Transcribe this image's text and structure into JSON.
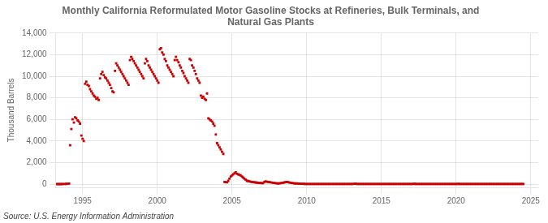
{
  "chart_data": {
    "type": "scatter",
    "title": "Monthly California Reformulated Motor Gasoline Stocks at Refineries, Bulk Terminals, and\nNatural Gas Plants",
    "ylabel": "Thousand Barrels",
    "source": "Source: U.S. Energy Information Administration",
    "color": "#cc0000",
    "marker": "square",
    "grid": true,
    "xlim": [
      1993.2,
      2025.5
    ],
    "ylim": [
      -300,
      14000
    ],
    "xticks": [
      1995,
      2000,
      2005,
      2010,
      2015,
      2020,
      2025
    ],
    "yticks": [
      0,
      {
        "value": 2000,
        "label": "2,000"
      },
      {
        "value": 4000,
        "label": "4,000"
      },
      {
        "value": 6000,
        "label": "6,000"
      },
      {
        "value": 8000,
        "label": "8,000"
      },
      {
        "value": 10000,
        "label": "10,000"
      },
      {
        "value": 12000,
        "label": "12,000"
      },
      {
        "value": 14000,
        "label": "14,000"
      }
    ],
    "x": [
      1993.3,
      1993.4,
      1993.5,
      1993.6,
      1993.7,
      1993.8,
      1993.9,
      1994.0,
      1994.1,
      1994.17,
      1994.25,
      1994.33,
      1994.42,
      1994.5,
      1994.58,
      1994.67,
      1994.75,
      1994.83,
      1994.92,
      1995.0,
      1995.08,
      1995.17,
      1995.25,
      1995.33,
      1995.42,
      1995.5,
      1995.58,
      1995.67,
      1995.75,
      1995.83,
      1995.92,
      1996.0,
      1996.08,
      1996.17,
      1996.25,
      1996.33,
      1996.42,
      1996.5,
      1996.58,
      1996.67,
      1996.75,
      1996.83,
      1996.92,
      1997.0,
      1997.08,
      1997.17,
      1997.25,
      1997.33,
      1997.42,
      1997.5,
      1997.58,
      1997.67,
      1997.75,
      1997.83,
      1997.92,
      1998.0,
      1998.08,
      1998.17,
      1998.25,
      1998.33,
      1998.42,
      1998.5,
      1998.58,
      1998.67,
      1998.75,
      1998.83,
      1998.92,
      1999.0,
      1999.08,
      1999.17,
      1999.25,
      1999.33,
      1999.42,
      1999.5,
      1999.58,
      1999.67,
      1999.75,
      1999.83,
      1999.92,
      2000.0,
      2000.08,
      2000.17,
      2000.25,
      2000.33,
      2000.42,
      2000.5,
      2000.58,
      2000.67,
      2000.75,
      2000.83,
      2000.92,
      2001.0,
      2001.08,
      2001.17,
      2001.25,
      2001.33,
      2001.42,
      2001.5,
      2001.58,
      2001.67,
      2001.75,
      2001.83,
      2001.92,
      2002.0,
      2002.08,
      2002.17,
      2002.25,
      2002.33,
      2002.42,
      2002.5,
      2002.58,
      2002.67,
      2002.75,
      2002.83,
      2002.92,
      2003.0,
      2003.08,
      2003.17,
      2003.25,
      2003.33,
      2003.42,
      2003.5,
      2003.58,
      2003.67,
      2003.75,
      2003.83,
      2003.92,
      2004.0,
      2004.08,
      2004.17,
      2004.25,
      2004.33,
      2004.42,
      2004.5,
      2004.58,
      2004.67,
      2004.75,
      2004.83,
      2004.92,
      2005.0,
      2005.08,
      2005.17,
      2005.25,
      2005.33,
      2005.42,
      2005.5,
      2005.58,
      2005.67,
      2005.75,
      2005.83,
      2005.92,
      2006.0,
      2006.08,
      2006.17,
      2006.25,
      2006.33,
      2006.42,
      2006.5,
      2006.58,
      2006.67,
      2006.75,
      2006.83,
      2006.92,
      2007.0,
      2007.08,
      2007.17,
      2007.25,
      2007.33,
      2007.42,
      2007.5,
      2007.58,
      2007.67,
      2007.75,
      2007.83,
      2007.92,
      2008.0,
      2008.08,
      2008.17,
      2008.25,
      2008.33,
      2008.42,
      2008.5,
      2008.58,
      2008.67,
      2008.75,
      2008.83,
      2008.92,
      2009.0,
      2009.08,
      2009.17,
      2009.25,
      2009.33,
      2009.42,
      2009.5,
      2009.58,
      2009.67,
      2009.75,
      2009.83,
      2009.92,
      2010.0,
      2010.08,
      2010.17,
      2010.25,
      2010.33,
      2010.42,
      2010.5,
      2010.58,
      2010.67,
      2010.75,
      2010.83,
      2010.92,
      2011.0,
      2011.08,
      2011.17,
      2011.25,
      2011.33,
      2011.42,
      2011.5,
      2011.58,
      2011.67,
      2011.75,
      2011.83,
      2011.92,
      2012.0,
      2012.08,
      2012.17,
      2012.25,
      2012.33,
      2012.42,
      2012.5,
      2012.58,
      2012.67,
      2012.75,
      2012.83,
      2012.92,
      2013.0,
      2013.08,
      2013.17,
      2013.25,
      2013.33,
      2013.42,
      2013.5,
      2013.58,
      2013.67,
      2013.75,
      2013.83,
      2013.92,
      2014.0,
      2014.08,
      2014.17,
      2014.25,
      2014.33,
      2014.42,
      2014.5,
      2014.58,
      2014.67,
      2014.75,
      2014.83,
      2014.92,
      2015.0,
      2015.08,
      2015.17,
      2015.25,
      2015.33,
      2015.42,
      2015.5,
      2015.58,
      2015.67,
      2015.75,
      2015.83,
      2015.92,
      2016.0,
      2016.08,
      2016.17,
      2016.25,
      2016.33,
      2016.42,
      2016.5,
      2016.58,
      2016.67,
      2016.75,
      2016.83,
      2016.92,
      2017.0,
      2017.08,
      2017.17,
      2017.25,
      2017.33,
      2017.42,
      2017.5,
      2017.58,
      2017.67,
      2017.75,
      2017.83,
      2017.92,
      2018.0,
      2018.08,
      2018.17,
      2018.25,
      2018.33,
      2018.42,
      2018.5,
      2018.58,
      2018.67,
      2018.75,
      2018.83,
      2018.92,
      2019.0,
      2019.08,
      2019.17,
      2019.25,
      2019.33,
      2019.42,
      2019.5,
      2019.58,
      2019.67,
      2019.75,
      2019.83,
      2019.92,
      2020.0,
      2020.08,
      2020.17,
      2020.25,
      2020.33,
      2020.42,
      2020.5,
      2020.58,
      2020.67,
      2020.75,
      2020.83,
      2020.92,
      2021.0,
      2021.08,
      2021.17,
      2021.25,
      2021.33,
      2021.42,
      2021.5,
      2021.58,
      2021.67,
      2021.75,
      2021.83,
      2021.92,
      2022.0,
      2022.08,
      2022.17,
      2022.25,
      2022.33,
      2022.42,
      2022.5,
      2022.58,
      2022.67,
      2022.75,
      2022.83,
      2022.92,
      2023.0,
      2023.08,
      2023.17,
      2023.25,
      2023.33,
      2023.42,
      2023.5,
      2023.58,
      2023.67,
      2023.75,
      2023.83,
      2023.92,
      2024.0,
      2024.08,
      2024.17,
      2024.25,
      2024.33,
      2024.42,
      2024.5
    ],
    "values": [
      0,
      0,
      0,
      0,
      10,
      10,
      20,
      30,
      50,
      3600,
      5100,
      6000,
      5700,
      6200,
      6100,
      5900,
      5800,
      5600,
      4500,
      4200,
      4000,
      9300,
      9500,
      9200,
      9100,
      8800,
      8600,
      8400,
      8200,
      8100,
      7900,
      8000,
      7800,
      9800,
      10200,
      10400,
      10100,
      9900,
      9800,
      9600,
      9400,
      9200,
      8900,
      8600,
      8500,
      10500,
      11200,
      11000,
      10800,
      10600,
      10400,
      10200,
      10000,
      9800,
      9600,
      9400,
      9200,
      11500,
      11800,
      11600,
      11400,
      11200,
      11000,
      10800,
      10600,
      10400,
      10200,
      10000,
      9800,
      11200,
      11600,
      11400,
      11000,
      10800,
      10600,
      10400,
      10200,
      10000,
      9800,
      9600,
      9400,
      12500,
      12600,
      12200,
      12000,
      11600,
      11400,
      11000,
      10800,
      10600,
      10400,
      10200,
      10000,
      11500,
      11800,
      11500,
      11300,
      11000,
      10800,
      10500,
      10300,
      10000,
      9800,
      9600,
      9400,
      11600,
      11500,
      11000,
      10800,
      10500,
      10200,
      9800,
      9600,
      9400,
      8200,
      8000,
      8100,
      7900,
      7800,
      8400,
      6100,
      6000,
      5900,
      5800,
      5600,
      5400,
      4600,
      3800,
      3600,
      3400,
      3200,
      3000,
      2800,
      200,
      180,
      160,
      300,
      500,
      700,
      800,
      900,
      1000,
      1100,
      950,
      900,
      850,
      800,
      700,
      600,
      500,
      400,
      300,
      280,
      250,
      220,
      200,
      180,
      160,
      150,
      130,
      120,
      110,
      100,
      90,
      80,
      200,
      250,
      220,
      200,
      180,
      160,
      140,
      120,
      100,
      80,
      70,
      60,
      70,
      80,
      100,
      120,
      150,
      180,
      200,
      180,
      150,
      120,
      100,
      80,
      70,
      60,
      60,
      50,
      40,
      35,
      30,
      25,
      20,
      15,
      12,
      10,
      8,
      6,
      5,
      5,
      5,
      5,
      5,
      5,
      5,
      5,
      5,
      5,
      5,
      5,
      5,
      5,
      5,
      5,
      5,
      5,
      5,
      5,
      5,
      5,
      5,
      5,
      5,
      5,
      5,
      5,
      5,
      5,
      5,
      5,
      5,
      5,
      30,
      25,
      20,
      15,
      10,
      8,
      5,
      5,
      5,
      5,
      5,
      5,
      5,
      5,
      5,
      5,
      5,
      5,
      5,
      5,
      5,
      5,
      5,
      5,
      5,
      5,
      5,
      5,
      5,
      5,
      5,
      5,
      5,
      5,
      5,
      5,
      5,
      5,
      5,
      5,
      5,
      5,
      5,
      5,
      5,
      5,
      5,
      5,
      30,
      20,
      10,
      5,
      5,
      5,
      5,
      5,
      5,
      5,
      5,
      5,
      5,
      5,
      5,
      5,
      5,
      5,
      5,
      5,
      5,
      5,
      5,
      5,
      5,
      5,
      5,
      5,
      5,
      5,
      5,
      5,
      5,
      5,
      5,
      5,
      20,
      10,
      8,
      5,
      5,
      5,
      5,
      5,
      5,
      5,
      5,
      5,
      5,
      5,
      5,
      5,
      5,
      5,
      5,
      5,
      5,
      5,
      5,
      5,
      5,
      5,
      5,
      5,
      5,
      5,
      5,
      5,
      5,
      5,
      5,
      5,
      5,
      5,
      5,
      5,
      5,
      5,
      5,
      5,
      5,
      5,
      5,
      5,
      5,
      5,
      5,
      5,
      5
    ]
  }
}
